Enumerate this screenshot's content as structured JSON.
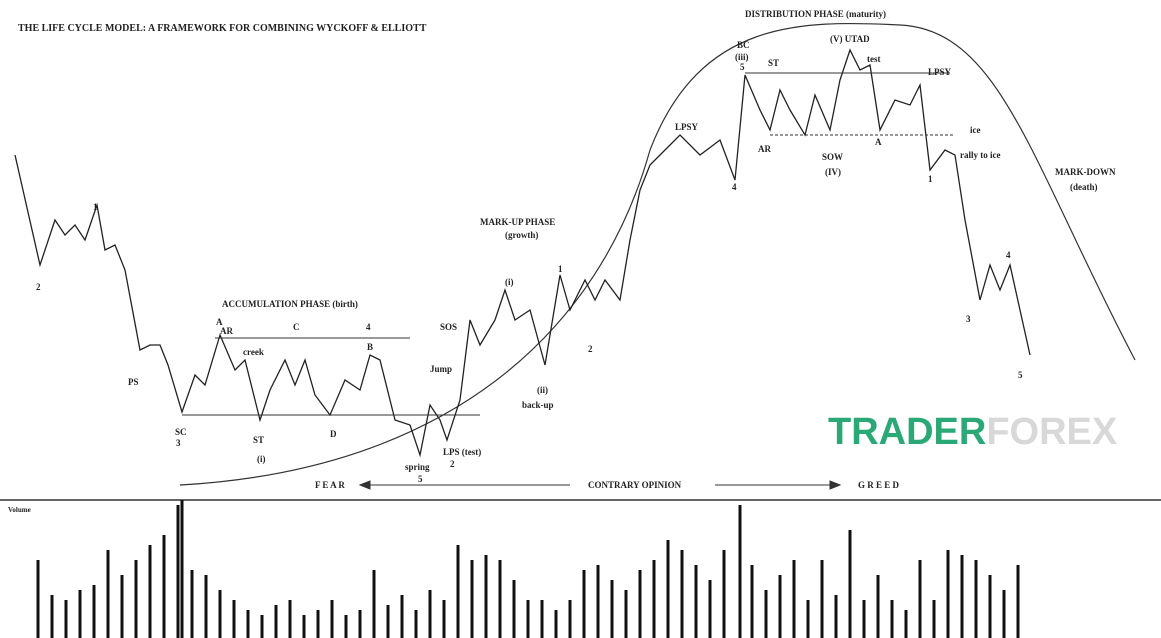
{
  "header": {
    "title": "THE LIFE CYCLE MODEL: A FRAMEWORK FOR COMBINING WYCKOFF & ELLIOTT"
  },
  "phases": {
    "accumulation": "ACCUMULATION PHASE (birth)",
    "markup": "MARK-UP PHASE",
    "markup_sub": "(growth)",
    "distribution": "DISTRIBUTION PHASE (maturity)",
    "markdown": "MARK-DOWN",
    "markdown_sub": "(death)"
  },
  "sentiment": {
    "fear": "F E A R",
    "contrary": "CONTRARY OPINION",
    "greed": "G R E E D"
  },
  "volume_label": "Volume",
  "logo": {
    "part1": "TRADER",
    "part2": "FOREX"
  },
  "labels": [
    "PS",
    "SC",
    "3",
    "ST",
    "(i)",
    "A",
    "AR",
    "creek",
    "C",
    "4",
    "B",
    "D",
    "spring",
    "5",
    "LPS (test)",
    "2",
    "Jump",
    "SOS",
    "(i)",
    "back-up",
    "(ii)",
    "1",
    "2",
    "LPSY",
    "4",
    "BC",
    "(iii)",
    "5",
    "ST",
    "(V) UTAD",
    "test",
    "LPSY",
    "AR",
    "SOW",
    "(IV)",
    "A",
    "ice",
    "rally to ice",
    "1",
    "3",
    "4",
    "5",
    "2",
    "1"
  ]
}
